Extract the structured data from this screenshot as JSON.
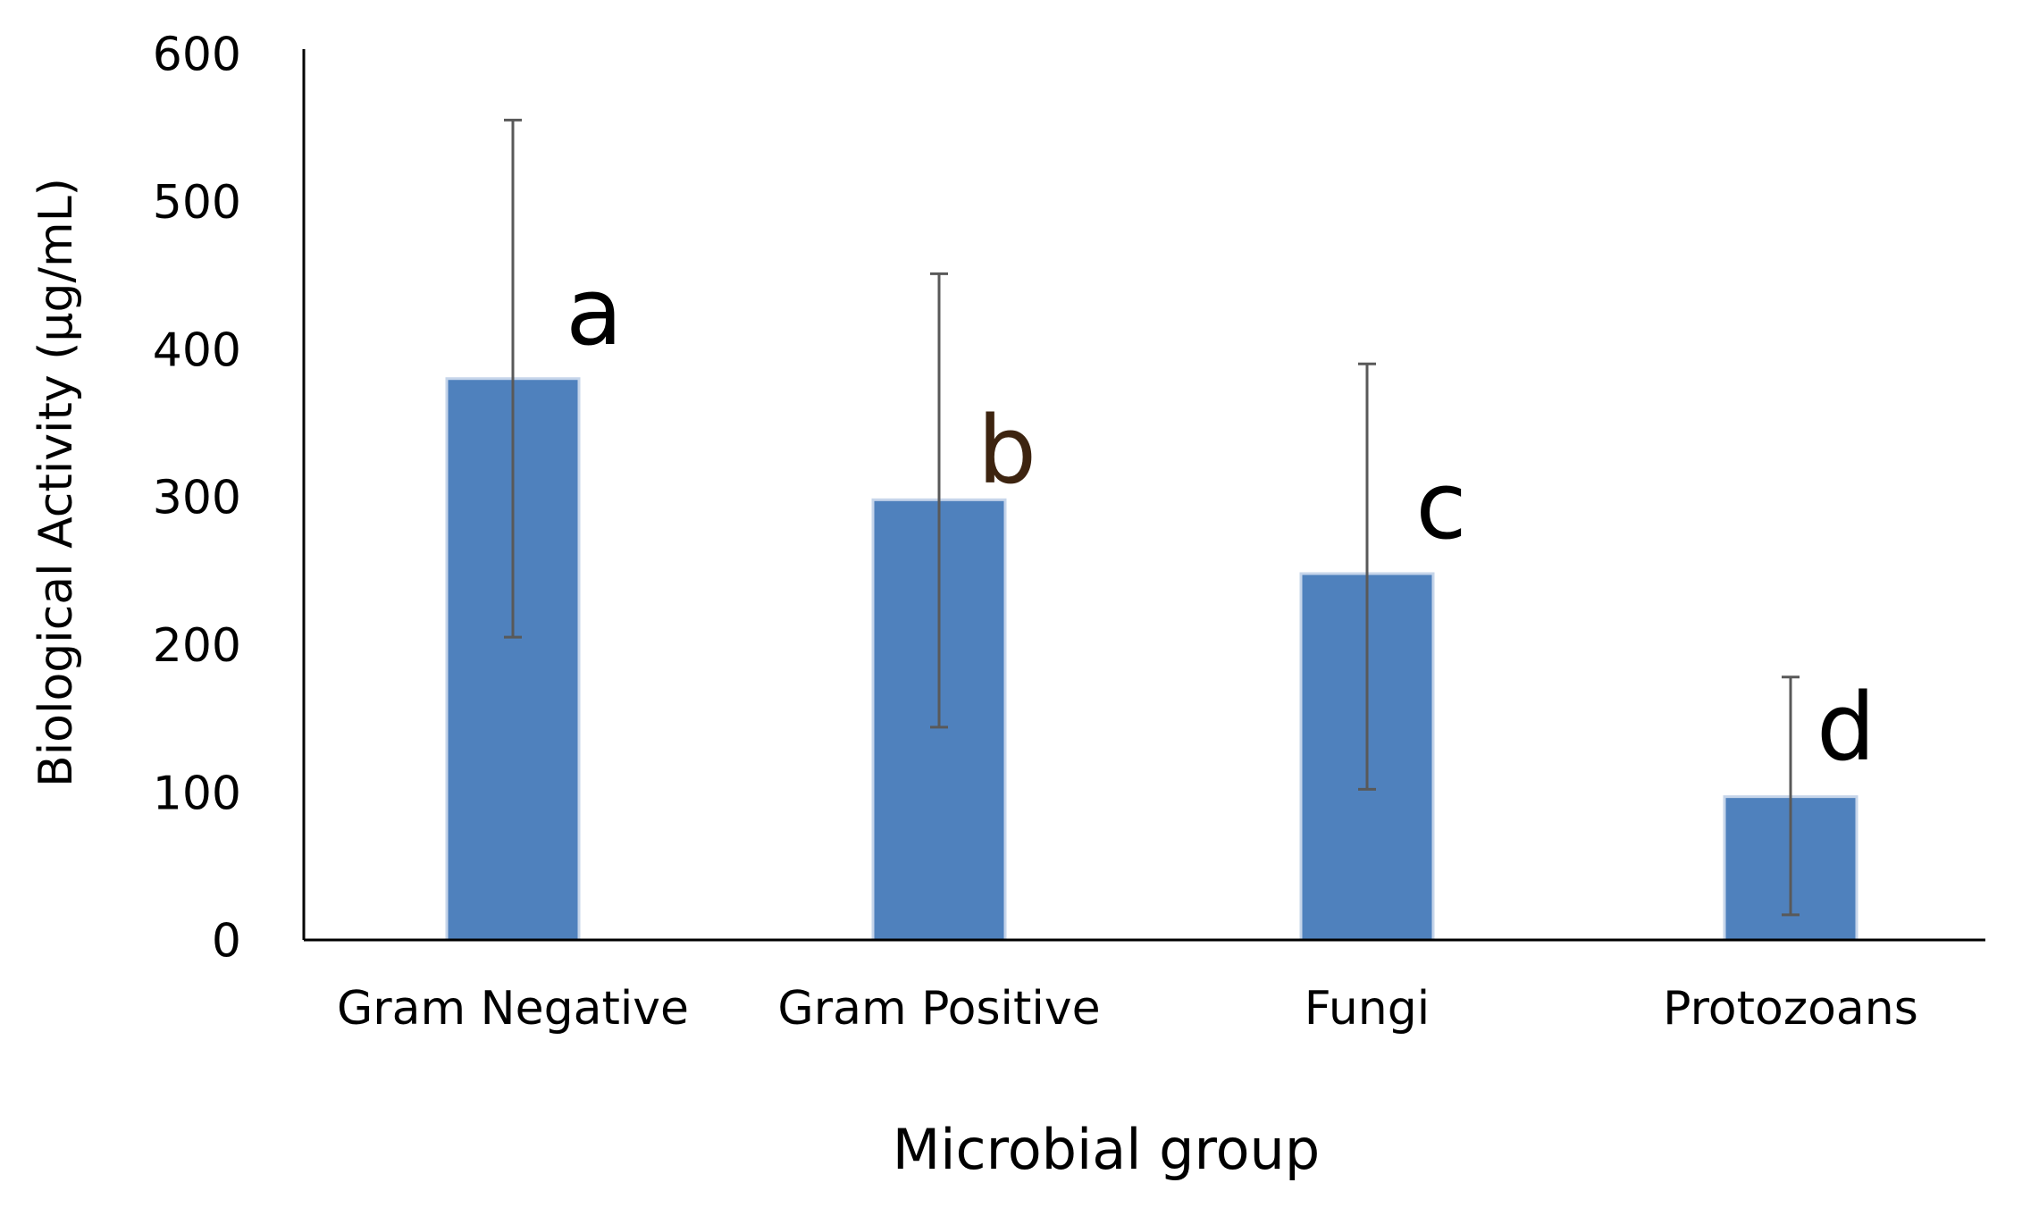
{
  "chart_data": {
    "type": "bar",
    "title": "",
    "xlabel": "Microbial group",
    "ylabel": "Biological Activity (µg/mL)",
    "categories": [
      "Gram Negative",
      "Gram Positive",
      "Fungi",
      "Protozoans"
    ],
    "values": [
      380,
      298,
      248,
      97
    ],
    "error_low": [
      205,
      144,
      102,
      17
    ],
    "error_high": [
      555,
      451,
      390,
      178
    ],
    "significance_labels": [
      "a",
      "b",
      "c",
      "d"
    ],
    "ylim": [
      0,
      600
    ],
    "yticks": [
      "0",
      "100",
      "200",
      "300",
      "400",
      "500",
      "600"
    ],
    "grid": false,
    "legend": "none",
    "colors": {
      "bar": "#4f81bd",
      "bar_edge": "#c6d5ea",
      "error_bar": "#595959",
      "axis": "#000000",
      "text": "#000000",
      "significance_b": "#3d2410"
    }
  }
}
